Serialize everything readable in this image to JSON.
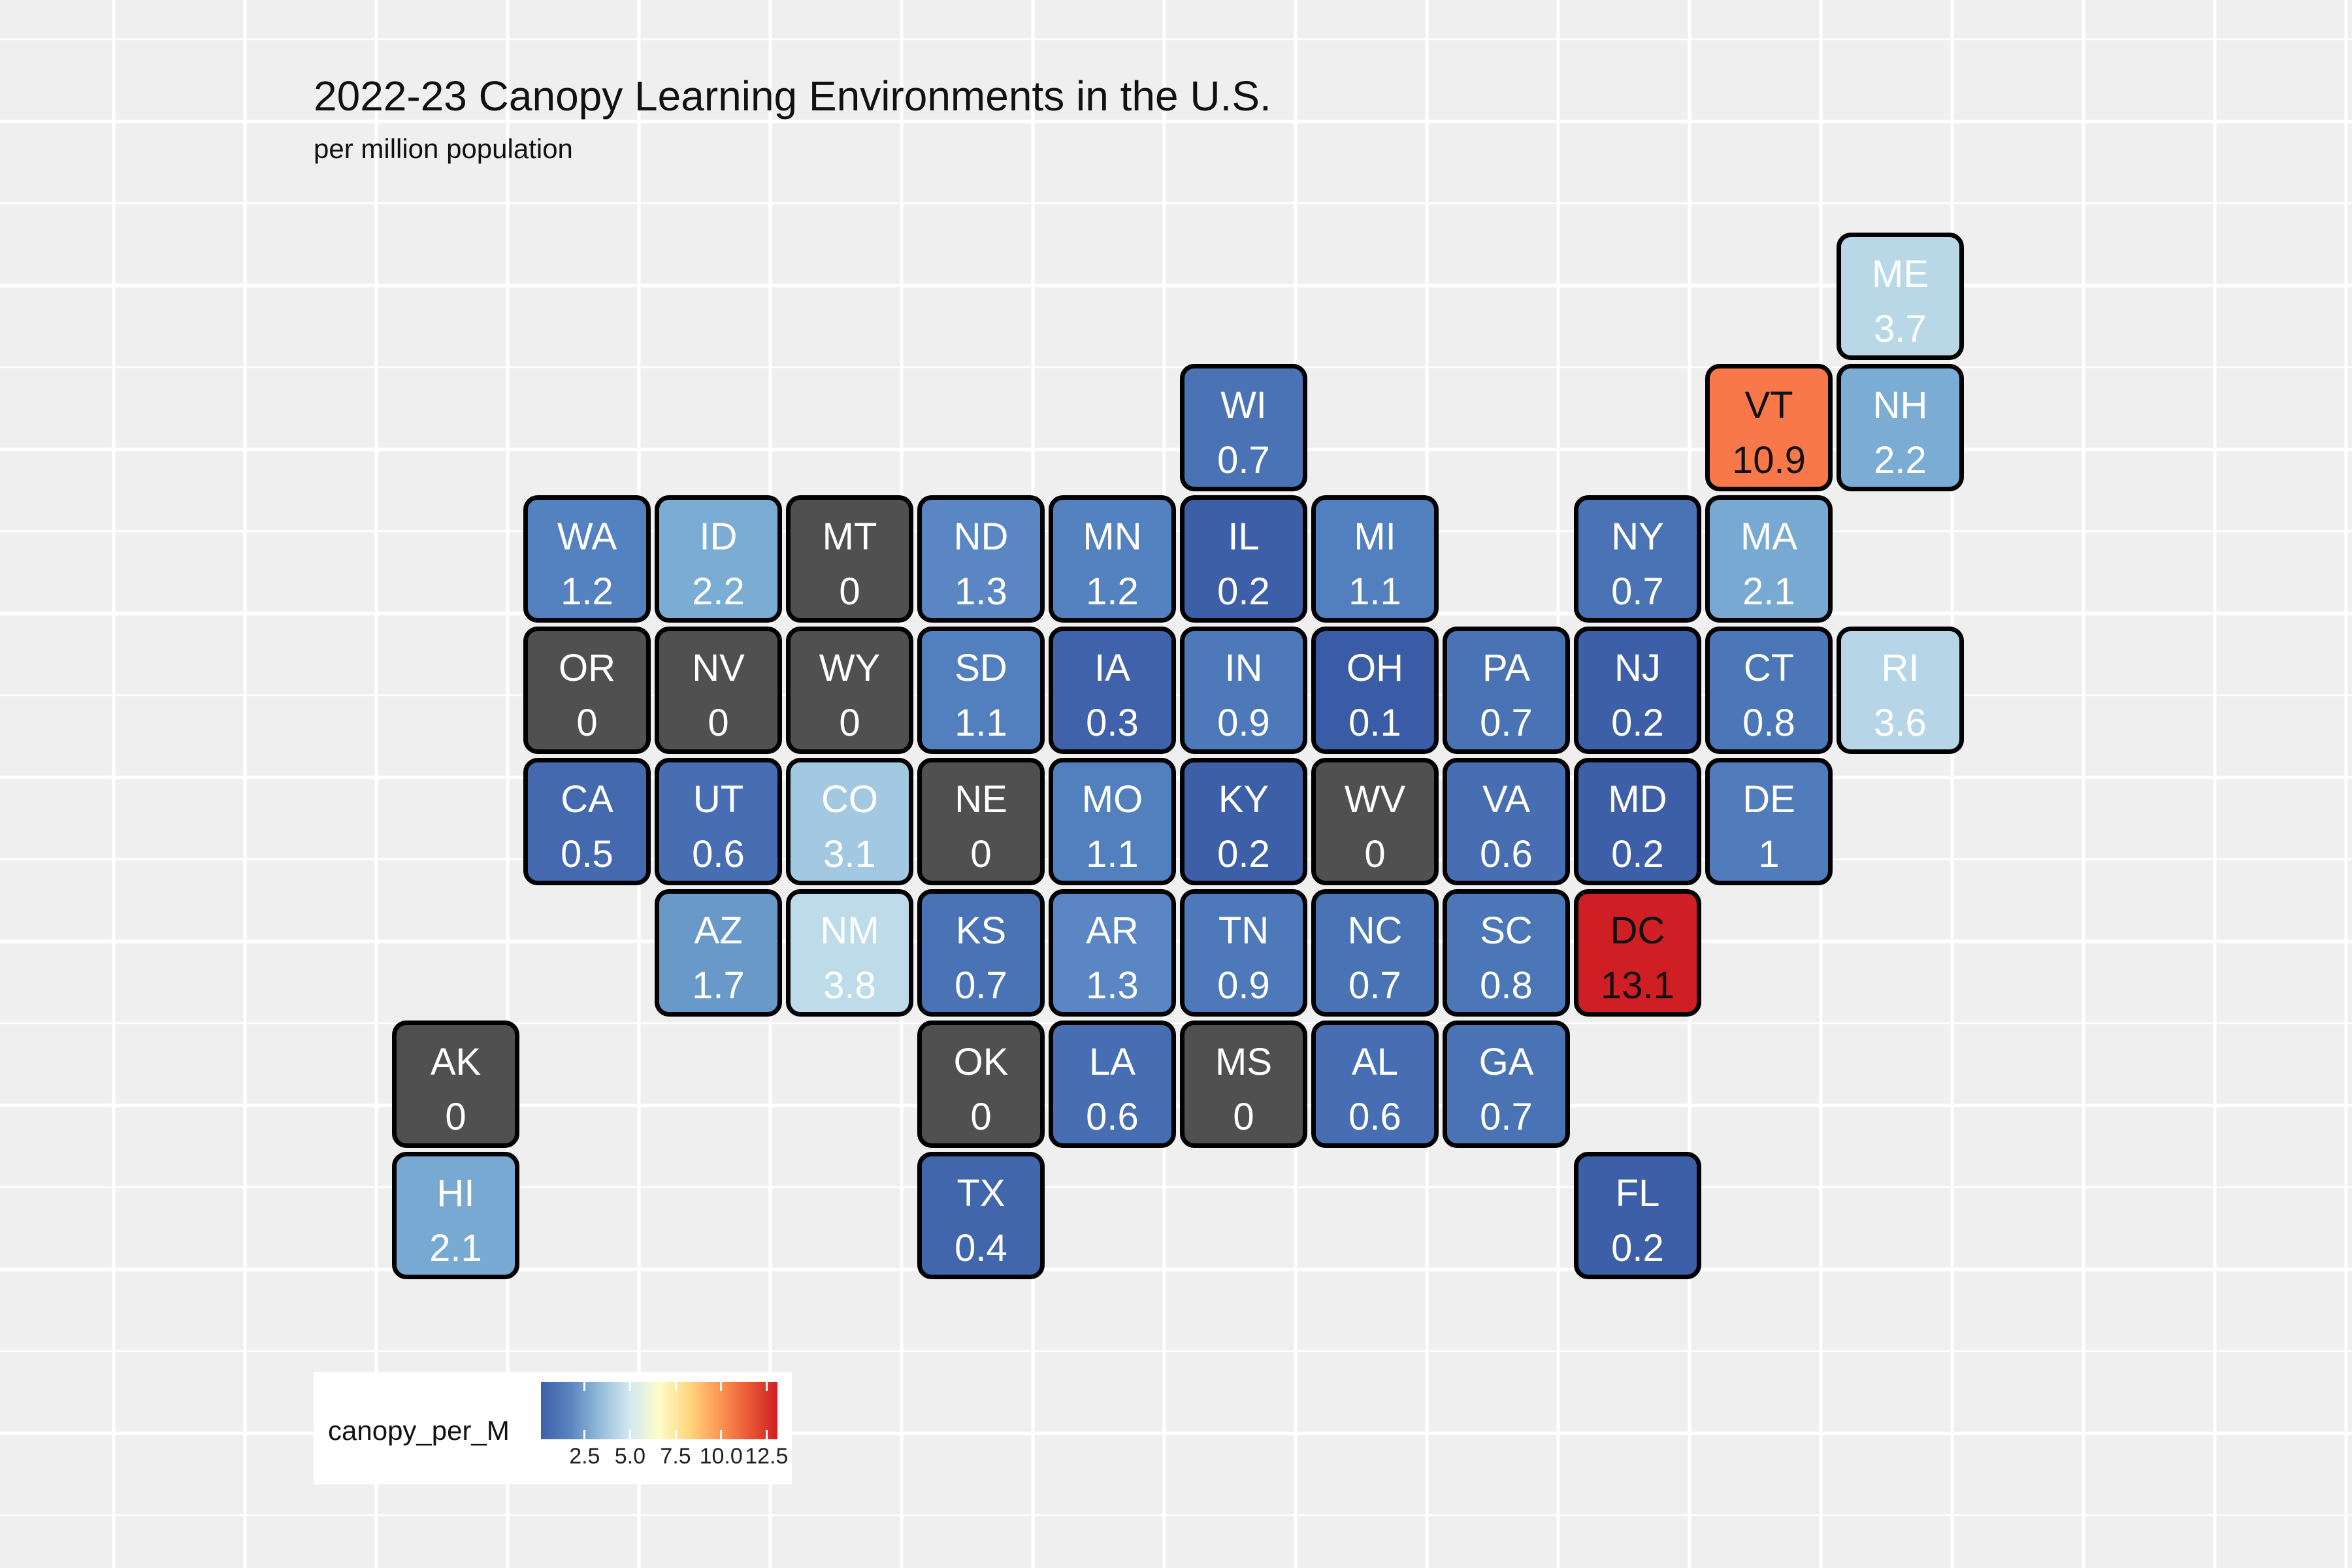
{
  "title": "2022-23 Canopy Learning Environments in the U.S.",
  "subtitle": "per million population",
  "legend": {
    "title": "canopy_per_M",
    "ticks": [
      "2.5",
      "5.0",
      "7.5",
      "10.0",
      "12.5"
    ],
    "tick_values": [
      2.5,
      5.0,
      7.5,
      10.0,
      12.5
    ],
    "range": [
      0.1,
      13.1
    ],
    "gradient": [
      "#3e60a8",
      "#5a85bf",
      "#94bcdc",
      "#d2e8f1",
      "#fdfdc8",
      "#fed77f",
      "#fc9a55",
      "#ea5a36",
      "#cf1f24"
    ]
  },
  "colors": {
    "missing": "#505050",
    "background": "#efefef",
    "border": "#000000"
  },
  "chart_data": {
    "type": "tile-map",
    "variable": "canopy_per_M",
    "tiles": [
      {
        "abbr": "ME",
        "value": "3.7",
        "col": 11,
        "row": 0,
        "fill": "#b8d8e8"
      },
      {
        "abbr": "WI",
        "value": "0.7",
        "col": 6,
        "row": 1,
        "fill": "#4a73b5"
      },
      {
        "abbr": "VT",
        "value": "10.9",
        "col": 10,
        "row": 1,
        "fill": "#f8784a"
      },
      {
        "abbr": "NH",
        "value": "2.2",
        "col": 11,
        "row": 1,
        "fill": "#7aacd4"
      },
      {
        "abbr": "WA",
        "value": "1.2",
        "col": 1,
        "row": 2,
        "fill": "#5481c0"
      },
      {
        "abbr": "ID",
        "value": "2.2",
        "col": 2,
        "row": 2,
        "fill": "#7aacd4"
      },
      {
        "abbr": "MT",
        "value": "0",
        "col": 3,
        "row": 2,
        "fill": "#505050"
      },
      {
        "abbr": "ND",
        "value": "1.3",
        "col": 4,
        "row": 2,
        "fill": "#5a87c3"
      },
      {
        "abbr": "MN",
        "value": "1.2",
        "col": 5,
        "row": 2,
        "fill": "#5481c0"
      },
      {
        "abbr": "IL",
        "value": "0.2",
        "col": 6,
        "row": 2,
        "fill": "#3d5fa8"
      },
      {
        "abbr": "MI",
        "value": "1.1",
        "col": 7,
        "row": 2,
        "fill": "#527fbe"
      },
      {
        "abbr": "NY",
        "value": "0.7",
        "col": 9,
        "row": 2,
        "fill": "#4a73b5"
      },
      {
        "abbr": "MA",
        "value": "2.1",
        "col": 10,
        "row": 2,
        "fill": "#78a9d2"
      },
      {
        "abbr": "OR",
        "value": "0",
        "col": 1,
        "row": 3,
        "fill": "#505050"
      },
      {
        "abbr": "NV",
        "value": "0",
        "col": 2,
        "row": 3,
        "fill": "#505050"
      },
      {
        "abbr": "WY",
        "value": "0",
        "col": 3,
        "row": 3,
        "fill": "#505050"
      },
      {
        "abbr": "SD",
        "value": "1.1",
        "col": 4,
        "row": 3,
        "fill": "#527fbe"
      },
      {
        "abbr": "IA",
        "value": "0.3",
        "col": 5,
        "row": 3,
        "fill": "#3f62aa"
      },
      {
        "abbr": "IN",
        "value": "0.9",
        "col": 6,
        "row": 3,
        "fill": "#4d79ba"
      },
      {
        "abbr": "OH",
        "value": "0.1",
        "col": 7,
        "row": 3,
        "fill": "#3a5ba5"
      },
      {
        "abbr": "PA",
        "value": "0.7",
        "col": 8,
        "row": 3,
        "fill": "#4a73b5"
      },
      {
        "abbr": "NJ",
        "value": "0.2",
        "col": 9,
        "row": 3,
        "fill": "#3d5fa8"
      },
      {
        "abbr": "CT",
        "value": "0.8",
        "col": 10,
        "row": 3,
        "fill": "#4b76b8"
      },
      {
        "abbr": "RI",
        "value": "3.6",
        "col": 11,
        "row": 3,
        "fill": "#b6d6e8"
      },
      {
        "abbr": "CA",
        "value": "0.5",
        "col": 1,
        "row": 4,
        "fill": "#4569ae"
      },
      {
        "abbr": "UT",
        "value": "0.6",
        "col": 2,
        "row": 4,
        "fill": "#476eb2"
      },
      {
        "abbr": "CO",
        "value": "3.1",
        "col": 3,
        "row": 4,
        "fill": "#a3c9e2"
      },
      {
        "abbr": "NE",
        "value": "0",
        "col": 4,
        "row": 4,
        "fill": "#505050"
      },
      {
        "abbr": "MO",
        "value": "1.1",
        "col": 5,
        "row": 4,
        "fill": "#527fbe"
      },
      {
        "abbr": "KY",
        "value": "0.2",
        "col": 6,
        "row": 4,
        "fill": "#3d5fa8"
      },
      {
        "abbr": "WV",
        "value": "0",
        "col": 7,
        "row": 4,
        "fill": "#505050"
      },
      {
        "abbr": "VA",
        "value": "0.6",
        "col": 8,
        "row": 4,
        "fill": "#476eb2"
      },
      {
        "abbr": "MD",
        "value": "0.2",
        "col": 9,
        "row": 4,
        "fill": "#3d5fa8"
      },
      {
        "abbr": "DE",
        "value": "1",
        "col": 10,
        "row": 4,
        "fill": "#507cbc"
      },
      {
        "abbr": "AZ",
        "value": "1.7",
        "col": 2,
        "row": 5,
        "fill": "#6899c9"
      },
      {
        "abbr": "NM",
        "value": "3.8",
        "col": 3,
        "row": 5,
        "fill": "#bddbe9"
      },
      {
        "abbr": "KS",
        "value": "0.7",
        "col": 4,
        "row": 5,
        "fill": "#4a73b5"
      },
      {
        "abbr": "AR",
        "value": "1.3",
        "col": 5,
        "row": 5,
        "fill": "#5a87c3"
      },
      {
        "abbr": "TN",
        "value": "0.9",
        "col": 6,
        "row": 5,
        "fill": "#4d79ba"
      },
      {
        "abbr": "NC",
        "value": "0.7",
        "col": 7,
        "row": 5,
        "fill": "#4a73b5"
      },
      {
        "abbr": "SC",
        "value": "0.8",
        "col": 8,
        "row": 5,
        "fill": "#4b76b8"
      },
      {
        "abbr": "DC",
        "value": "13.1",
        "col": 9,
        "row": 5,
        "fill": "#cf1f24"
      },
      {
        "abbr": "AK",
        "value": "0",
        "col": 0,
        "row": 6,
        "fill": "#505050"
      },
      {
        "abbr": "OK",
        "value": "0",
        "col": 4,
        "row": 6,
        "fill": "#505050"
      },
      {
        "abbr": "LA",
        "value": "0.6",
        "col": 5,
        "row": 6,
        "fill": "#476eb2"
      },
      {
        "abbr": "MS",
        "value": "0",
        "col": 6,
        "row": 6,
        "fill": "#505050"
      },
      {
        "abbr": "AL",
        "value": "0.6",
        "col": 7,
        "row": 6,
        "fill": "#476eb2"
      },
      {
        "abbr": "GA",
        "value": "0.7",
        "col": 8,
        "row": 6,
        "fill": "#4a73b5"
      },
      {
        "abbr": "HI",
        "value": "2.1",
        "col": 0,
        "row": 7,
        "fill": "#78a9d2"
      },
      {
        "abbr": "TX",
        "value": "0.4",
        "col": 4,
        "row": 7,
        "fill": "#4266ab"
      },
      {
        "abbr": "FL",
        "value": "0.2",
        "col": 9,
        "row": 7,
        "fill": "#3d5fa8"
      }
    ]
  }
}
